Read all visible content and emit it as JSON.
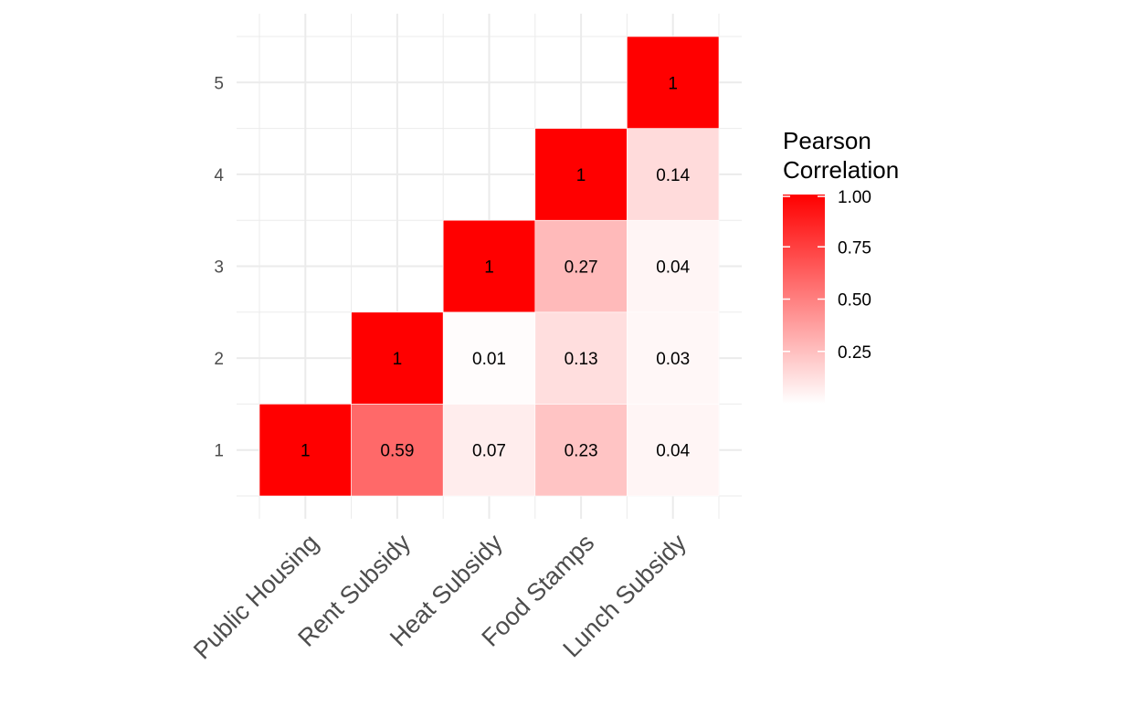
{
  "chart_data": {
    "type": "heatmap",
    "title": "",
    "xlabel": "",
    "ylabel": "",
    "x_categories": [
      "Public Housing",
      "Rent Subsidy",
      "Heat Subsidy",
      "Food Stamps",
      "Lunch Subsidy"
    ],
    "y_categories": [
      "1",
      "2",
      "3",
      "4",
      "5"
    ],
    "cells": [
      {
        "x": "Public Housing",
        "y": "1",
        "value": 1,
        "label": "1"
      },
      {
        "x": "Rent Subsidy",
        "y": "1",
        "value": 0.59,
        "label": "0.59"
      },
      {
        "x": "Heat Subsidy",
        "y": "1",
        "value": 0.07,
        "label": "0.07"
      },
      {
        "x": "Food Stamps",
        "y": "1",
        "value": 0.23,
        "label": "0.23"
      },
      {
        "x": "Lunch Subsidy",
        "y": "1",
        "value": 0.04,
        "label": "0.04"
      },
      {
        "x": "Rent Subsidy",
        "y": "2",
        "value": 1,
        "label": "1"
      },
      {
        "x": "Heat Subsidy",
        "y": "2",
        "value": 0.01,
        "label": "0.01"
      },
      {
        "x": "Food Stamps",
        "y": "2",
        "value": 0.13,
        "label": "0.13"
      },
      {
        "x": "Lunch Subsidy",
        "y": "2",
        "value": 0.03,
        "label": "0.03"
      },
      {
        "x": "Heat Subsidy",
        "y": "3",
        "value": 1,
        "label": "1"
      },
      {
        "x": "Food Stamps",
        "y": "3",
        "value": 0.27,
        "label": "0.27"
      },
      {
        "x": "Lunch Subsidy",
        "y": "3",
        "value": 0.04,
        "label": "0.04"
      },
      {
        "x": "Food Stamps",
        "y": "4",
        "value": 1,
        "label": "1"
      },
      {
        "x": "Lunch Subsidy",
        "y": "4",
        "value": 0.14,
        "label": "0.14"
      },
      {
        "x": "Lunch Subsidy",
        "y": "5",
        "value": 1,
        "label": "1"
      }
    ],
    "legend": {
      "title_line1": "Pearson",
      "title_line2": "Correlation",
      "placement": "right",
      "range": [
        0,
        1
      ],
      "ticks": [
        {
          "value": 1.0,
          "label": "1.00"
        },
        {
          "value": 0.75,
          "label": "0.75"
        },
        {
          "value": 0.5,
          "label": "0.50"
        },
        {
          "value": 0.25,
          "label": "0.25"
        }
      ]
    },
    "colors": {
      "low": "#ffffff",
      "high": "#ff0000"
    },
    "grid": true
  }
}
